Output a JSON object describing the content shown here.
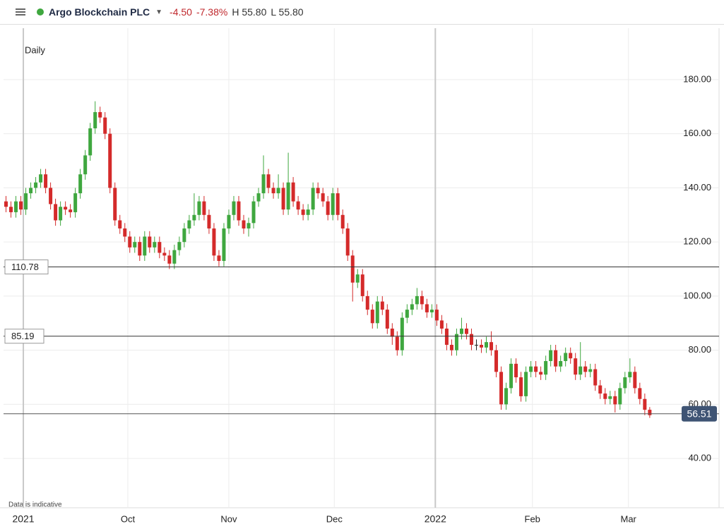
{
  "header": {
    "title": "Argo Blockchain PLC",
    "change": "-4.50",
    "change_pct": "-7.38%",
    "high": "H 55.80",
    "low": "L 55.80"
  },
  "chart_data": {
    "type": "candlestick",
    "interval": "Daily",
    "footnote": "Data is indicative",
    "up_color": "#3fa73f",
    "down_color": "#d42a2a",
    "xlim": [
      -0.5,
      144
    ],
    "ylim": [
      21.8,
      199
    ],
    "yticks": [
      {
        "value": 40,
        "label": "40.00"
      },
      {
        "value": 60,
        "label": "60.00"
      },
      {
        "value": 80,
        "label": "80.00"
      },
      {
        "value": 100,
        "label": "100.00"
      },
      {
        "value": 120,
        "label": "120.00"
      },
      {
        "value": 140,
        "label": "140.00"
      },
      {
        "value": 160,
        "label": "160.00"
      },
      {
        "value": 180,
        "label": "180.00"
      }
    ],
    "xticks": [
      {
        "value": 3.5,
        "label": "2021"
      },
      {
        "value": 24.6,
        "label": "Oct"
      },
      {
        "value": 45,
        "label": "Nov"
      },
      {
        "value": 66.3,
        "label": "Dec"
      },
      {
        "value": 86.7,
        "label": "2022"
      },
      {
        "value": 106.3,
        "label": "Feb"
      },
      {
        "value": 125.7,
        "label": "Mar"
      }
    ],
    "price_lines": [
      110.78,
      85.19
    ],
    "last_price": 56.51,
    "open": [
      135,
      133,
      131,
      135,
      132,
      138,
      140,
      142,
      145,
      140,
      134,
      128,
      133,
      132,
      131,
      138,
      145,
      152,
      162,
      168,
      166,
      160,
      140,
      128,
      125,
      122,
      118,
      120,
      115,
      122,
      118,
      120,
      116,
      115,
      112,
      117,
      120,
      125,
      128,
      130,
      135,
      130,
      125,
      115,
      113,
      125,
      130,
      135,
      128,
      125,
      127,
      135,
      138,
      145,
      140,
      138,
      140,
      132,
      142,
      135,
      132,
      130,
      132,
      140,
      138,
      135,
      130,
      138,
      130,
      125,
      115,
      105,
      108,
      100,
      95,
      90,
      98,
      95,
      88,
      85,
      80,
      92,
      95,
      97,
      100,
      97,
      94,
      95,
      91,
      88,
      82,
      80,
      86,
      88,
      86,
      82,
      82,
      81,
      83,
      80,
      72,
      60,
      66,
      75,
      70,
      63,
      72,
      74,
      72,
      71,
      76,
      80,
      74,
      76,
      79,
      77,
      71,
      74,
      72,
      73,
      67,
      64,
      62,
      63,
      60,
      66,
      70,
      72,
      66,
      62,
      58
    ],
    "high": [
      137,
      135,
      137,
      137,
      140,
      142,
      144,
      147,
      147,
      142,
      136,
      135,
      135,
      134,
      140,
      147,
      154,
      164,
      172,
      170,
      168,
      162,
      142,
      130,
      127,
      124,
      122,
      122,
      124,
      124,
      122,
      122,
      118,
      117,
      119,
      122,
      127,
      130,
      138,
      137,
      137,
      132,
      127,
      117,
      127,
      132,
      137,
      137,
      130,
      129,
      137,
      140,
      152,
      147,
      142,
      145,
      142,
      153,
      144,
      137,
      134,
      134,
      142,
      142,
      140,
      137,
      140,
      140,
      132,
      127,
      117,
      110,
      110,
      102,
      97,
      100,
      100,
      97,
      90,
      87,
      94,
      97,
      99,
      103,
      102,
      99,
      97,
      97,
      93,
      90,
      84,
      88,
      92,
      90,
      88,
      84,
      84,
      85,
      87,
      82,
      74,
      68,
      77,
      77,
      72,
      74,
      76,
      76,
      74,
      78,
      82,
      82,
      78,
      81,
      81,
      79,
      83,
      76,
      75,
      75,
      69,
      66,
      65,
      65,
      68,
      72,
      77,
      74,
      68,
      64,
      59
    ],
    "low": [
      131,
      129,
      129,
      130,
      130,
      136,
      138,
      140,
      138,
      132,
      126,
      126,
      130,
      129,
      129,
      136,
      143,
      150,
      160,
      164,
      158,
      138,
      126,
      123,
      120,
      116,
      116,
      113,
      113,
      116,
      116,
      114,
      113,
      110,
      110,
      115,
      118,
      123,
      126,
      128,
      128,
      123,
      113,
      111,
      111,
      123,
      128,
      126,
      123,
      122,
      125,
      133,
      136,
      138,
      136,
      136,
      130,
      130,
      133,
      130,
      128,
      128,
      130,
      136,
      133,
      128,
      128,
      128,
      123,
      113,
      98,
      103,
      98,
      93,
      88,
      88,
      93,
      86,
      82,
      78,
      78,
      90,
      93,
      95,
      95,
      92,
      92,
      89,
      86,
      80,
      78,
      78,
      84,
      84,
      80,
      80,
      79,
      79,
      78,
      70,
      58,
      58,
      64,
      68,
      61,
      61,
      70,
      70,
      69,
      69,
      74,
      72,
      72,
      74,
      75,
      69,
      69,
      70,
      70,
      65,
      62,
      60,
      60,
      57,
      58,
      64,
      68,
      64,
      60,
      56,
      55
    ],
    "close": [
      133,
      131,
      135,
      132,
      138,
      140,
      142,
      145,
      140,
      134,
      128,
      133,
      132,
      131,
      138,
      145,
      152,
      162,
      168,
      166,
      160,
      140,
      128,
      125,
      122,
      118,
      120,
      115,
      122,
      118,
      120,
      116,
      115,
      112,
      117,
      120,
      125,
      128,
      130,
      135,
      130,
      125,
      115,
      113,
      125,
      130,
      135,
      128,
      125,
      127,
      135,
      138,
      145,
      140,
      138,
      140,
      132,
      142,
      135,
      132,
      130,
      132,
      140,
      138,
      135,
      130,
      138,
      130,
      125,
      115,
      105,
      108,
      100,
      95,
      90,
      98,
      95,
      88,
      85,
      80,
      92,
      95,
      97,
      100,
      97,
      94,
      95,
      91,
      88,
      82,
      80,
      86,
      88,
      86,
      82,
      82,
      81,
      83,
      80,
      72,
      60,
      66,
      75,
      70,
      63,
      72,
      74,
      72,
      71,
      76,
      80,
      74,
      76,
      79,
      77,
      71,
      74,
      72,
      73,
      67,
      64,
      62,
      63,
      60,
      66,
      70,
      72,
      66,
      62,
      58,
      56
    ]
  }
}
